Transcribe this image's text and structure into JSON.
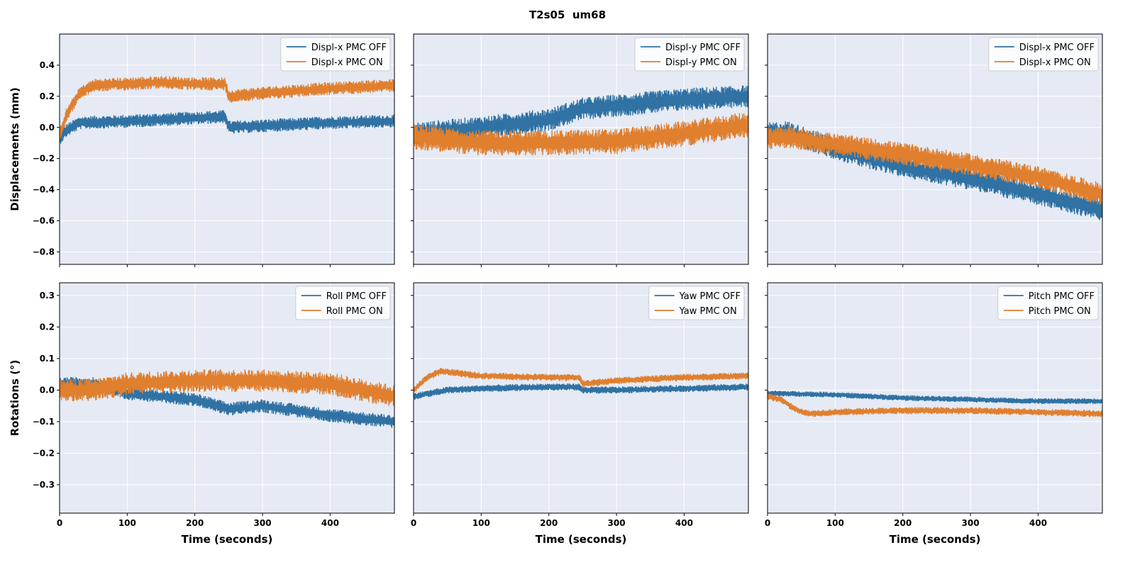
{
  "title": "T2s05  um68",
  "colors": {
    "off": "#2f72a3",
    "on": "#e07f2e",
    "panel_bg": "#e5eaf4",
    "grid": "#ffffff"
  },
  "chart_data": [
    {
      "type": "line",
      "row": 0,
      "col": 0,
      "xlabel": "",
      "ylabel": "Displacements (mm)",
      "xlim": [
        0,
        495
      ],
      "ylim": [
        -0.88,
        0.6
      ],
      "xticks": [
        0,
        100,
        200,
        300,
        400
      ],
      "show_xtick_labels": false,
      "yticks": [
        -0.8,
        -0.6,
        -0.4,
        -0.2,
        0.0,
        0.2,
        0.4
      ],
      "show_ytick_labels": true,
      "ytick_labels": [
        "−0.8",
        "−0.6",
        "−0.4",
        "−0.2",
        "0.0",
        "0.2",
        "0.4"
      ],
      "grid": true,
      "legend_position": "top-right",
      "series": [
        {
          "name": "Displ-x PMC OFF",
          "color_key": "off",
          "amplitude": 0.04,
          "x": [
            0,
            10,
            30,
            100,
            200,
            245,
            250,
            300,
            400,
            495
          ],
          "y": [
            -0.07,
            -0.02,
            0.03,
            0.04,
            0.06,
            0.07,
            0.0,
            0.01,
            0.03,
            0.04
          ]
        },
        {
          "name": "Displ-x PMC ON",
          "color_key": "on",
          "amplitude": 0.04,
          "x": [
            0,
            10,
            30,
            50,
            100,
            150,
            200,
            245,
            250,
            300,
            400,
            495
          ],
          "y": [
            -0.05,
            0.08,
            0.22,
            0.27,
            0.28,
            0.29,
            0.28,
            0.28,
            0.2,
            0.22,
            0.25,
            0.27
          ]
        }
      ]
    },
    {
      "type": "line",
      "row": 0,
      "col": 1,
      "xlabel": "",
      "ylabel": "",
      "xlim": [
        0,
        495
      ],
      "ylim": [
        -0.88,
        0.6
      ],
      "xticks": [
        0,
        100,
        200,
        300,
        400
      ],
      "show_xtick_labels": false,
      "yticks": [
        -0.8,
        -0.6,
        -0.4,
        -0.2,
        0.0,
        0.2,
        0.4
      ],
      "show_ytick_labels": false,
      "ytick_labels": [],
      "grid": true,
      "legend_position": "top-right",
      "series": [
        {
          "name": "Displ-y PMC OFF",
          "color_key": "off",
          "amplitude": 0.07,
          "x": [
            0,
            100,
            200,
            250,
            300,
            400,
            495
          ],
          "y": [
            -0.04,
            0.0,
            0.05,
            0.12,
            0.14,
            0.18,
            0.2
          ]
        },
        {
          "name": "Displ-y PMC ON",
          "color_key": "on",
          "amplitude": 0.08,
          "x": [
            0,
            100,
            200,
            300,
            400,
            495
          ],
          "y": [
            -0.06,
            -0.1,
            -0.1,
            -0.09,
            -0.04,
            0.02
          ]
        }
      ]
    },
    {
      "type": "line",
      "row": 0,
      "col": 2,
      "xlabel": "",
      "ylabel": "",
      "xlim": [
        0,
        495
      ],
      "ylim": [
        -0.88,
        0.6
      ],
      "xticks": [
        0,
        100,
        200,
        300,
        400
      ],
      "show_xtick_labels": false,
      "yticks": [
        -0.8,
        -0.6,
        -0.4,
        -0.2,
        0.0,
        0.2,
        0.4
      ],
      "show_ytick_labels": false,
      "ytick_labels": [],
      "grid": true,
      "legend_position": "top-right",
      "series": [
        {
          "name": "Displ-x PMC OFF",
          "color_key": "off",
          "amplitude": 0.07,
          "x": [
            0,
            30,
            100,
            200,
            300,
            400,
            495
          ],
          "y": [
            -0.04,
            -0.03,
            -0.14,
            -0.25,
            -0.33,
            -0.43,
            -0.53
          ]
        },
        {
          "name": "Displ-x PMC ON",
          "color_key": "on",
          "amplitude": 0.07,
          "x": [
            0,
            30,
            100,
            200,
            300,
            400,
            495
          ],
          "y": [
            -0.07,
            -0.06,
            -0.11,
            -0.17,
            -0.24,
            -0.32,
            -0.43
          ]
        }
      ]
    },
    {
      "type": "line",
      "row": 1,
      "col": 0,
      "xlabel": "Time (seconds)",
      "ylabel": "Rotations (°)",
      "xlim": [
        0,
        495
      ],
      "ylim": [
        -0.39,
        0.34
      ],
      "xticks": [
        0,
        100,
        200,
        300,
        400
      ],
      "show_xtick_labels": true,
      "yticks": [
        -0.3,
        -0.2,
        -0.1,
        0.0,
        0.1,
        0.2,
        0.3
      ],
      "show_ytick_labels": true,
      "ytick_labels": [
        "−0.3",
        "−0.2",
        "−0.1",
        "0.0",
        "0.1",
        "0.2",
        "0.3"
      ],
      "grid": true,
      "legend_position": "top-right",
      "series": [
        {
          "name": "Roll PMC OFF",
          "color_key": "off",
          "amplitude": 0.02,
          "x": [
            0,
            50,
            100,
            200,
            250,
            300,
            400,
            495
          ],
          "y": [
            0.02,
            0.02,
            -0.01,
            -0.03,
            -0.06,
            -0.05,
            -0.08,
            -0.1
          ]
        },
        {
          "name": "Roll PMC ON",
          "color_key": "on",
          "amplitude": 0.035,
          "x": [
            0,
            50,
            100,
            200,
            300,
            400,
            495
          ],
          "y": [
            0.0,
            0.0,
            0.02,
            0.03,
            0.03,
            0.02,
            -0.02
          ]
        }
      ]
    },
    {
      "type": "line",
      "row": 1,
      "col": 1,
      "xlabel": "Time (seconds)",
      "ylabel": "",
      "xlim": [
        0,
        495
      ],
      "ylim": [
        -0.39,
        0.34
      ],
      "xticks": [
        0,
        100,
        200,
        300,
        400
      ],
      "show_xtick_labels": true,
      "yticks": [
        -0.3,
        -0.2,
        -0.1,
        0.0,
        0.1,
        0.2,
        0.3
      ],
      "show_ytick_labels": false,
      "ytick_labels": [],
      "grid": true,
      "legend_position": "top-right",
      "series": [
        {
          "name": "Yaw PMC OFF",
          "color_key": "off",
          "amplitude": 0.01,
          "x": [
            0,
            50,
            100,
            200,
            245,
            250,
            300,
            400,
            495
          ],
          "y": [
            -0.02,
            0.0,
            0.005,
            0.01,
            0.01,
            0.0,
            0.0,
            0.005,
            0.01
          ]
        },
        {
          "name": "Yaw PMC ON",
          "color_key": "on",
          "amplitude": 0.01,
          "x": [
            0,
            20,
            40,
            100,
            200,
            245,
            250,
            300,
            400,
            495
          ],
          "y": [
            0.0,
            0.04,
            0.06,
            0.045,
            0.04,
            0.04,
            0.02,
            0.03,
            0.04,
            0.045
          ]
        }
      ]
    },
    {
      "type": "line",
      "row": 1,
      "col": 2,
      "xlabel": "Time (seconds)",
      "ylabel": "",
      "xlim": [
        0,
        495
      ],
      "ylim": [
        -0.39,
        0.34
      ],
      "xticks": [
        0,
        100,
        200,
        300,
        400
      ],
      "show_xtick_labels": true,
      "yticks": [
        -0.3,
        -0.2,
        -0.1,
        0.0,
        0.1,
        0.2,
        0.3
      ],
      "show_ytick_labels": false,
      "ytick_labels": [],
      "grid": true,
      "legend_position": "top-right",
      "series": [
        {
          "name": "Pitch PMC OFF",
          "color_key": "off",
          "amplitude": 0.008,
          "x": [
            0,
            100,
            200,
            300,
            400,
            495
          ],
          "y": [
            -0.01,
            -0.015,
            -0.025,
            -0.03,
            -0.035,
            -0.035
          ]
        },
        {
          "name": "Pitch PMC ON",
          "color_key": "on",
          "amplitude": 0.01,
          "x": [
            0,
            20,
            40,
            60,
            100,
            200,
            300,
            400,
            495
          ],
          "y": [
            -0.02,
            -0.03,
            -0.06,
            -0.075,
            -0.07,
            -0.065,
            -0.065,
            -0.07,
            -0.075
          ]
        }
      ]
    }
  ]
}
